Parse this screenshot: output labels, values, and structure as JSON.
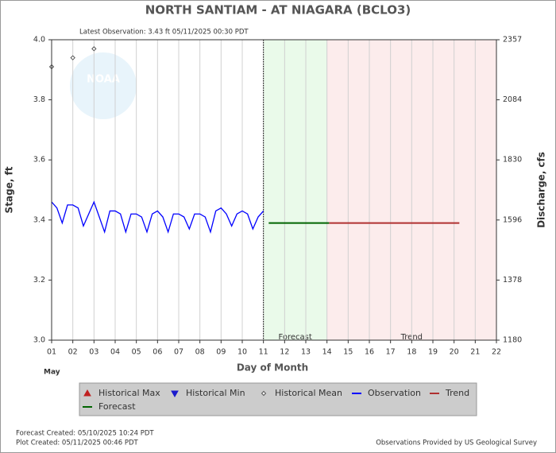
{
  "chart_data": {
    "type": "hydrograph",
    "title": "NORTH SANTIAM - AT NIAGARA  (BCLO3)",
    "subtitle": "Latest Observation: 3.43 ft 05/11/2025 00:30 PDT",
    "logo": "NOAA",
    "x_label": "Day of Month",
    "month": "May",
    "y_label": "Stage, ft",
    "y2_label": "Discharge, cfs",
    "xlim": [
      1,
      22
    ],
    "xticks": [
      {
        "value": 1,
        "label": "01"
      },
      {
        "value": 2,
        "label": "02"
      },
      {
        "value": 3,
        "label": "03"
      },
      {
        "value": 4,
        "label": "04"
      },
      {
        "value": 5,
        "label": "05"
      },
      {
        "value": 6,
        "label": "06"
      },
      {
        "value": 7,
        "label": "07"
      },
      {
        "value": 8,
        "label": "08"
      },
      {
        "value": 9,
        "label": "09"
      },
      10,
      11,
      12,
      13,
      14,
      15,
      16,
      17,
      18,
      19,
      20,
      21,
      22
    ],
    "ylim": [
      3.0,
      4.0
    ],
    "yticks": [
      {
        "value": 3.0,
        "label": "3.0"
      },
      3.2,
      3.4,
      3.6,
      3.8,
      {
        "value": 4.0,
        "label": "4.0"
      }
    ],
    "y2lim": [
      1180,
      2357
    ],
    "y2ticks": [
      1180,
      1378,
      1596,
      1830,
      2084,
      2357
    ],
    "current_time": 11,
    "regions": [
      {
        "name": "Forecast",
        "xlim": [
          11,
          14
        ],
        "color": "#eafaea"
      },
      {
        "name": "Trend",
        "xlim": [
          14,
          22
        ],
        "color": "#fcecec"
      }
    ],
    "series": [
      {
        "name": "Historical Max",
        "marker": "triangle-up",
        "color": "#c02020",
        "x": [],
        "values": []
      },
      {
        "name": "Historical Min",
        "marker": "triangle-down",
        "color": "#1a1acc",
        "x": [],
        "values": []
      },
      {
        "name": "Historical Mean",
        "marker": "diamond",
        "color": "#555555",
        "x": [
          1,
          2,
          3
        ],
        "values": [
          3.91,
          3.94,
          3.97
        ]
      },
      {
        "name": "Observation",
        "marker": "line",
        "color": "#0000ff",
        "x": [
          1,
          1.25,
          1.5,
          1.75,
          2,
          2.25,
          2.5,
          2.75,
          3,
          3.25,
          3.5,
          3.75,
          4,
          4.25,
          4.5,
          4.75,
          5,
          5.25,
          5.5,
          5.75,
          6,
          6.25,
          6.5,
          6.75,
          7,
          7.25,
          7.5,
          7.75,
          8,
          8.25,
          8.5,
          8.75,
          9,
          9.25,
          9.5,
          9.75,
          10,
          10.25,
          10.5,
          10.75,
          11
        ],
        "values": [
          3.46,
          3.44,
          3.39,
          3.45,
          3.45,
          3.44,
          3.38,
          3.42,
          3.46,
          3.41,
          3.36,
          3.43,
          3.43,
          3.42,
          3.36,
          3.42,
          3.42,
          3.41,
          3.36,
          3.42,
          3.43,
          3.41,
          3.36,
          3.42,
          3.42,
          3.41,
          3.37,
          3.42,
          3.42,
          3.41,
          3.36,
          3.43,
          3.44,
          3.42,
          3.38,
          3.42,
          3.43,
          3.42,
          3.37,
          3.41,
          3.43
        ]
      },
      {
        "name": "Trend",
        "marker": "line",
        "color": "#b03030",
        "x": [
          14.1,
          20.25
        ],
        "values": [
          3.39,
          3.39
        ]
      },
      {
        "name": "Forecast",
        "marker": "line",
        "color": "#006400",
        "x": [
          11.25,
          14.1
        ],
        "values": [
          3.39,
          3.39
        ]
      }
    ],
    "footer": {
      "forecast_created": "Forecast Created: 05/10/2025 10:24 PDT",
      "plot_created": "Plot Created: 05/11/2025 00:46 PDT",
      "source": "Observations Provided by US Geological Survey"
    }
  }
}
